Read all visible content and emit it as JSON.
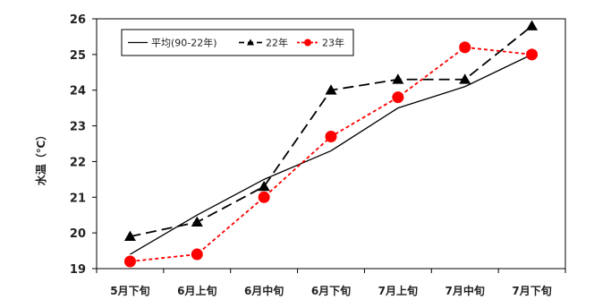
{
  "chart_data": {
    "type": "line",
    "ylabel": "水温（℃）",
    "ylim": [
      19,
      26
    ],
    "yticks": [
      19,
      20,
      21,
      22,
      23,
      24,
      25,
      26
    ],
    "categories": [
      "5月下旬",
      "6月上旬",
      "6月中旬",
      "6月下旬",
      "7月上旬",
      "7月中旬",
      "7月下旬"
    ],
    "grid": false,
    "legend_position": "top-left",
    "series": [
      {
        "name": "平均(90-22年)",
        "values": [
          19.4,
          20.5,
          21.5,
          22.3,
          23.5,
          24.1,
          25.0
        ],
        "color": "#000000",
        "style": "solid",
        "marker": "none"
      },
      {
        "name": "22年",
        "values": [
          19.9,
          20.3,
          21.3,
          24.0,
          24.3,
          24.3,
          25.8
        ],
        "color": "#000000",
        "style": "dashed",
        "marker": "triangle"
      },
      {
        "name": "23年",
        "values": [
          19.2,
          19.4,
          21.0,
          22.7,
          23.8,
          25.2,
          25.0
        ],
        "color": "#ff0000",
        "style": "dotted",
        "marker": "circle"
      }
    ]
  }
}
